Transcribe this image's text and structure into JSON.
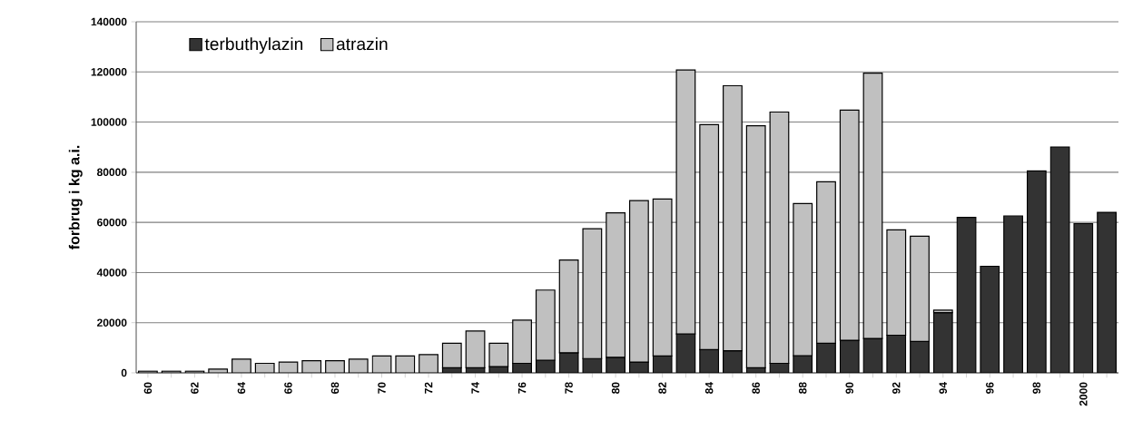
{
  "chart_data": {
    "type": "bar",
    "stacked": true,
    "ylabel": "forbrug i kg a.i.",
    "categories": [
      "60",
      null,
      "62",
      null,
      "64",
      null,
      "66",
      null,
      "68",
      null,
      "70",
      null,
      "72",
      null,
      "74",
      null,
      "76",
      null,
      "78",
      null,
      "80",
      null,
      "82",
      null,
      "84",
      null,
      "86",
      null,
      "88",
      null,
      "90",
      null,
      "92",
      null,
      "94",
      null,
      "96",
      null,
      "98",
      null,
      "2000",
      null
    ],
    "series": [
      {
        "name": "terbuthylazin",
        "color": "#333333",
        "values": [
          null,
          null,
          null,
          null,
          null,
          null,
          null,
          null,
          null,
          null,
          null,
          null,
          null,
          2000,
          2000,
          2500,
          3800,
          5000,
          8000,
          5700,
          6200,
          4300,
          6700,
          15500,
          9300,
          8800,
          2000,
          3800,
          6800,
          11800,
          13000,
          13700,
          15000,
          12500,
          24000,
          62000,
          42500,
          62500,
          80500,
          90000,
          59500,
          64000
        ]
      },
      {
        "name": "atrazin",
        "color": "#c0c0c0",
        "values": [
          700,
          700,
          700,
          1500,
          5500,
          3800,
          4300,
          4800,
          4800,
          5500,
          6700,
          6700,
          7300,
          9800,
          14700,
          9300,
          17200,
          28000,
          37000,
          51800,
          57600,
          64400,
          62600,
          105300,
          89700,
          105700,
          96500,
          100200,
          60700,
          64400,
          91800,
          105800,
          42000,
          42000,
          1000,
          null,
          null,
          null,
          null,
          null,
          null,
          null
        ]
      }
    ],
    "ylim": [
      0,
      140000
    ],
    "yticks": [
      0,
      20000,
      40000,
      60000,
      80000,
      100000,
      120000,
      140000
    ],
    "grid": "y",
    "legend": "top left"
  }
}
